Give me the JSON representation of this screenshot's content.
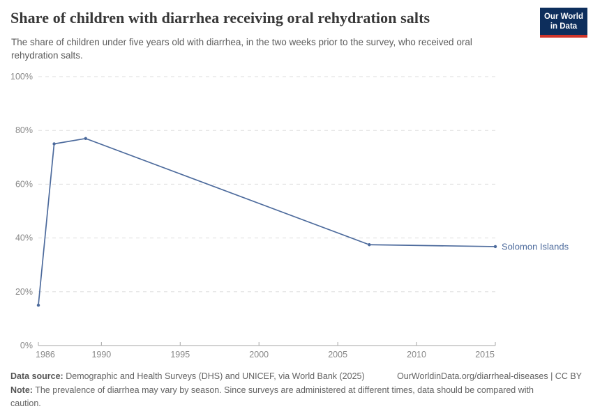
{
  "header": {
    "title": "Share of children with diarrhea receiving oral rehydration salts",
    "subtitle": "The share of children under five years old with diarrhea, in the two weeks prior to the survey, who received oral rehydration salts.",
    "logo": {
      "line1": "Our World",
      "line2": "in Data"
    }
  },
  "chart_data": {
    "type": "line",
    "title": "Share of children with diarrhea receiving oral rehydration salts",
    "xlabel": "",
    "ylabel": "",
    "x": {
      "ticks": [
        1986,
        1990,
        1995,
        2000,
        2005,
        2010,
        2015
      ],
      "range": [
        1986,
        2015
      ]
    },
    "y": {
      "ticks": [
        0,
        20,
        40,
        60,
        80,
        100
      ],
      "range": [
        0,
        100
      ],
      "tick_suffix": "%",
      "grid": "dashed"
    },
    "series": [
      {
        "name": "Solomon Islands",
        "color": "#4C6A9C",
        "points": [
          {
            "x": 1986,
            "y": 15
          },
          {
            "x": 1987,
            "y": 75
          },
          {
            "x": 1989,
            "y": 77
          },
          {
            "x": 2007,
            "y": 37.5
          },
          {
            "x": 2015,
            "y": 36.8
          }
        ]
      }
    ],
    "legend_position": "end-of-line"
  },
  "footer": {
    "data_source_label": "Data source:",
    "data_source": "Demographic and Health Surveys (DHS) and UNICEF, via World Bank (2025)",
    "link": "OurWorldinData.org/diarrheal-diseases | CC BY",
    "note_label": "Note:",
    "note": "The prevalence of diarrhea may vary by season. Since surveys are administered at different times, data should be compared with caution."
  },
  "colors": {
    "accent": "#4C6A9C",
    "logo_bg": "#0d2e5c",
    "logo_accent": "#d0352a",
    "grid": "#dddddd",
    "axis": "#a5a5a5",
    "tick_label": "#878787",
    "title_text": "#383838",
    "body_text": "#5c5c5c"
  }
}
